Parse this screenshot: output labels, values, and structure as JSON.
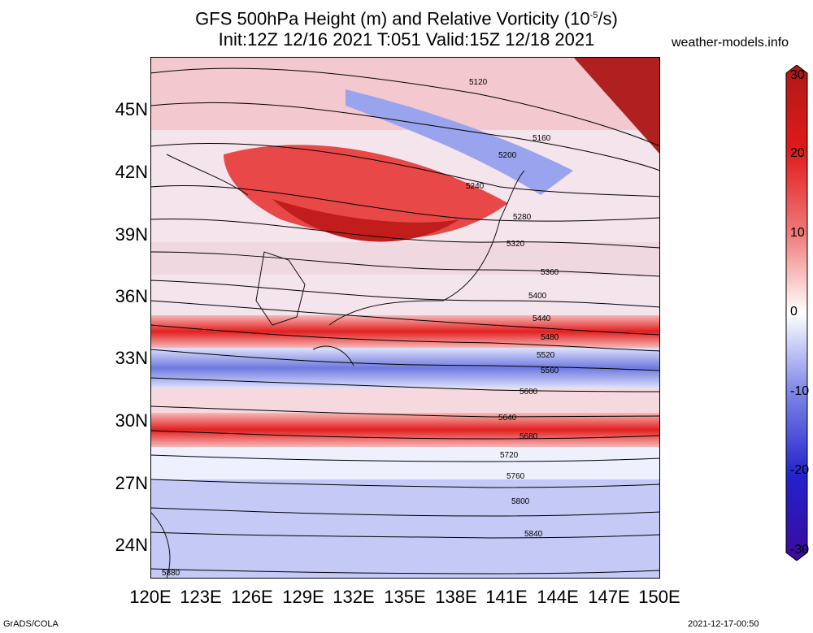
{
  "header": {
    "title_line1": "GFS 500hPa Height (m) and Relative Vorticity (10",
    "title_exp": "-5",
    "title_line1_end": "/s)",
    "title_line2": "Init:12Z 12/16 2021 T:051 Valid:15Z 12/18 2021",
    "site": "weather-models.info"
  },
  "footer": {
    "left": "GrADS/COLA",
    "right": "2021-12-17-00:50"
  },
  "map": {
    "lat_labels": [
      "45N",
      "42N",
      "39N",
      "36N",
      "33N",
      "30N",
      "27N",
      "24N"
    ],
    "lon_labels": [
      "120E",
      "123E",
      "126E",
      "129E",
      "132E",
      "135E",
      "138E",
      "141E",
      "144E",
      "147E",
      "150E"
    ],
    "contour_labels": [
      "5120",
      "5160",
      "5200",
      "5240",
      "5280",
      "5320",
      "5360",
      "5400",
      "5440",
      "5480",
      "5520",
      "5560",
      "5600",
      "5640",
      "5680",
      "5720",
      "5760",
      "5800",
      "5840",
      "5880"
    ],
    "colors": {
      "strong_positive": "#d62a2a",
      "positive": "#f07a7a",
      "neutral": "#ffffff",
      "negative": "#7d86e6",
      "strong_negative": "#3a3ad0",
      "contour": "#000000"
    }
  },
  "colorbar": {
    "ticks": [
      "30",
      "20",
      "10",
      "0",
      "-10",
      "-20",
      "-30"
    ]
  }
}
